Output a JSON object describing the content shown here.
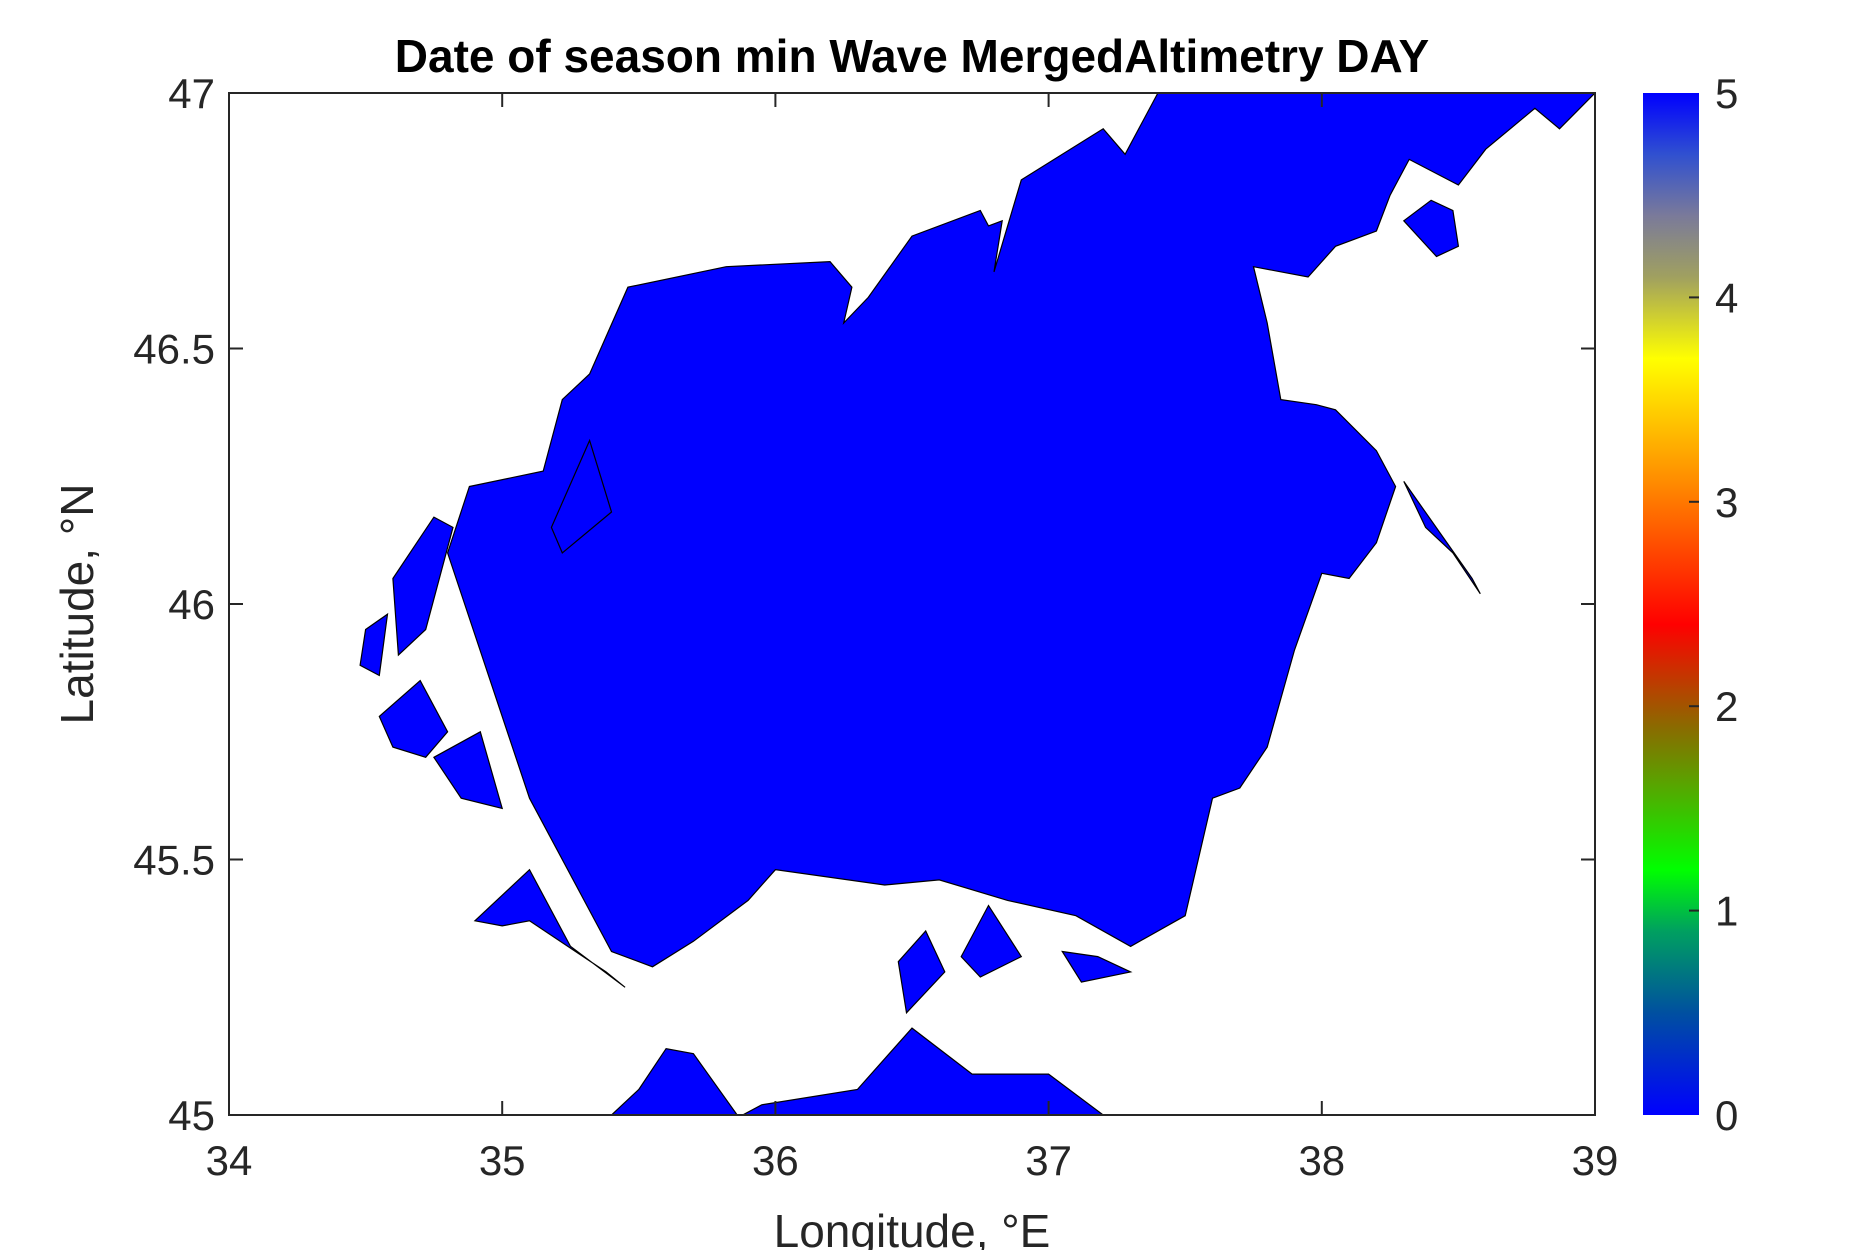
{
  "chart_data": {
    "type": "map",
    "title": "Date of season min Wave MergedAltimetry DAY",
    "xlabel": "Longitude, °E",
    "ylabel": "Latitude, °N",
    "xlim": [
      34,
      39
    ],
    "ylim": [
      45,
      47
    ],
    "xticks": [
      34,
      35,
      36,
      37,
      38,
      39
    ],
    "yticks": [
      45,
      45.5,
      46,
      46.5,
      47
    ],
    "xtick_labels": [
      "34",
      "35",
      "36",
      "37",
      "38",
      "39"
    ],
    "ytick_labels": [
      "45",
      "45.5",
      "46",
      "46.5",
      "47"
    ],
    "colorbar": {
      "range": [
        0,
        5
      ],
      "ticks": [
        0,
        1,
        2,
        3,
        4,
        5
      ],
      "tick_labels": [
        "0",
        "1",
        "2",
        "3",
        "4",
        "5"
      ],
      "colors": [
        "#0000ff",
        "#008080",
        "#00ff00",
        "#6b8e23",
        "#ff0000",
        "#ff8c00",
        "#ffff00",
        "#8b8b8b",
        "#0000ff"
      ]
    },
    "field_value": 0,
    "field_color": "#0000ff",
    "grid": false,
    "main_region": [
      [
        34.88,
        46.23
      ],
      [
        35.15,
        46.26
      ],
      [
        35.22,
        46.4
      ],
      [
        35.32,
        46.45
      ],
      [
        35.46,
        46.62
      ],
      [
        35.82,
        46.66
      ],
      [
        36.2,
        46.67
      ],
      [
        36.28,
        46.62
      ],
      [
        36.25,
        46.55
      ],
      [
        36.34,
        46.6
      ],
      [
        36.5,
        46.72
      ],
      [
        36.75,
        46.77
      ],
      [
        36.78,
        46.74
      ],
      [
        36.83,
        46.75
      ],
      [
        36.8,
        46.65
      ],
      [
        36.9,
        46.83
      ],
      [
        37.2,
        46.93
      ],
      [
        37.28,
        46.88
      ],
      [
        37.4,
        47.0
      ],
      [
        39.0,
        47.0
      ],
      [
        38.87,
        46.93
      ],
      [
        38.78,
        46.97
      ],
      [
        38.6,
        46.89
      ],
      [
        38.5,
        46.82
      ],
      [
        38.32,
        46.87
      ],
      [
        38.25,
        46.8
      ],
      [
        38.2,
        46.73
      ],
      [
        38.05,
        46.7
      ],
      [
        37.95,
        46.64
      ],
      [
        37.75,
        46.66
      ],
      [
        37.8,
        46.55
      ],
      [
        37.85,
        46.4
      ],
      [
        37.98,
        46.39
      ],
      [
        38.05,
        46.38
      ],
      [
        38.2,
        46.3
      ],
      [
        38.27,
        46.23
      ],
      [
        38.2,
        46.12
      ],
      [
        38.1,
        46.05
      ],
      [
        38.0,
        46.06
      ],
      [
        37.9,
        45.91
      ],
      [
        37.8,
        45.72
      ],
      [
        37.7,
        45.64
      ],
      [
        37.6,
        45.62
      ],
      [
        37.5,
        45.39
      ],
      [
        37.3,
        45.33
      ],
      [
        37.1,
        45.39
      ],
      [
        36.85,
        45.42
      ],
      [
        36.6,
        45.46
      ],
      [
        36.4,
        45.45
      ],
      [
        36.0,
        45.48
      ],
      [
        35.9,
        45.42
      ],
      [
        35.7,
        45.34
      ],
      [
        35.55,
        45.29
      ],
      [
        35.4,
        45.32
      ],
      [
        35.1,
        45.62
      ],
      [
        34.8,
        46.1
      ]
    ],
    "islands": [
      [
        [
          34.5,
          45.95
        ],
        [
          34.58,
          45.98
        ],
        [
          34.55,
          45.86
        ],
        [
          34.48,
          45.88
        ]
      ],
      [
        [
          34.6,
          46.05
        ],
        [
          34.75,
          46.17
        ],
        [
          34.82,
          46.15
        ],
        [
          34.72,
          45.95
        ],
        [
          34.62,
          45.9
        ]
      ],
      [
        [
          34.55,
          45.78
        ],
        [
          34.7,
          45.85
        ],
        [
          34.8,
          45.75
        ],
        [
          34.72,
          45.7
        ],
        [
          34.6,
          45.72
        ]
      ],
      [
        [
          34.75,
          45.7
        ],
        [
          34.92,
          45.75
        ],
        [
          35.0,
          45.6
        ],
        [
          34.85,
          45.62
        ]
      ],
      [
        [
          34.9,
          45.38
        ],
        [
          35.1,
          45.48
        ],
        [
          35.25,
          45.33
        ],
        [
          35.45,
          45.25
        ],
        [
          35.38,
          45.28
        ],
        [
          35.1,
          45.38
        ],
        [
          35.0,
          45.37
        ]
      ],
      [
        [
          35.22,
          46.1
        ],
        [
          35.4,
          46.18
        ],
        [
          35.32,
          46.32
        ],
        [
          35.18,
          46.15
        ]
      ],
      [
        [
          35.5,
          45.05
        ],
        [
          35.6,
          45.13
        ],
        [
          35.7,
          45.12
        ],
        [
          35.86,
          45.0
        ],
        [
          35.4,
          45.0
        ]
      ],
      [
        [
          35.95,
          45.02
        ],
        [
          36.3,
          45.05
        ],
        [
          36.5,
          45.17
        ],
        [
          36.72,
          45.08
        ],
        [
          37.0,
          45.08
        ],
        [
          37.2,
          45.0
        ],
        [
          35.88,
          45.0
        ]
      ],
      [
        [
          36.45,
          45.3
        ],
        [
          36.55,
          45.36
        ],
        [
          36.62,
          45.28
        ],
        [
          36.48,
          45.2
        ]
      ],
      [
        [
          36.68,
          45.31
        ],
        [
          36.78,
          45.41
        ],
        [
          36.9,
          45.31
        ],
        [
          36.75,
          45.27
        ]
      ],
      [
        [
          37.05,
          45.32
        ],
        [
          37.18,
          45.31
        ],
        [
          37.3,
          45.28
        ],
        [
          37.12,
          45.26
        ]
      ],
      [
        [
          38.3,
          46.24
        ],
        [
          38.55,
          46.05
        ],
        [
          38.58,
          46.02
        ],
        [
          38.48,
          46.1
        ],
        [
          38.38,
          46.15
        ]
      ],
      [
        [
          38.3,
          46.75
        ],
        [
          38.42,
          46.68
        ],
        [
          38.5,
          46.7
        ],
        [
          38.48,
          46.77
        ],
        [
          38.4,
          46.79
        ]
      ]
    ]
  }
}
